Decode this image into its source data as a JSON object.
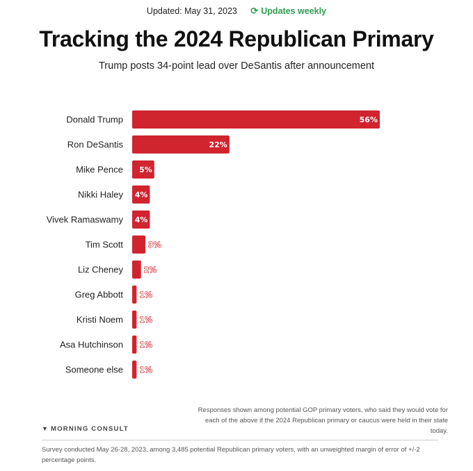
{
  "header": {
    "updated": "Updated: May 31, 2023",
    "frequency": "Updates weekly",
    "refresh_icon": "refresh-icon"
  },
  "title": "Tracking the 2024 Republican Primary",
  "subtitle": "Trump posts 34-point lead over DeSantis after announcement",
  "colors": {
    "bar": "#d0242f",
    "accent": "#2e9e4f"
  },
  "chart_data": {
    "type": "bar",
    "orientation": "horizontal",
    "categories": [
      "Donald Trump",
      "Ron DeSantis",
      "Mike Pence",
      "Nikki Haley",
      "Vivek Ramaswamy",
      "Tim Scott",
      "Liz Cheney",
      "Greg Abbott",
      "Kristi Noem",
      "Asa Hutchinson",
      "Someone else"
    ],
    "values": [
      56,
      22,
      5,
      4,
      4,
      3,
      2,
      1,
      1,
      1,
      1
    ],
    "value_labels": [
      "56%",
      "22%",
      "5%",
      "4%",
      "4%",
      "3%",
      "2%",
      "1%",
      "1%",
      "1%",
      "1%"
    ],
    "unit": "%",
    "xlim": [
      0,
      56
    ],
    "grid": false,
    "legend": "none"
  },
  "footnote": "Responses shown among potential GOP primary voters, who said they would vote for each of the above if the 2024 Republican primary or caucus were held in their state today.",
  "brand": "MORNING CONSULT",
  "brand_icon": "morning-consult-logo-icon",
  "survey_note": "Survey conducted May 26-28, 2023, among 3,485 potential Republican primary voters, with an unweighted margin of error of +/-2 percentage points."
}
